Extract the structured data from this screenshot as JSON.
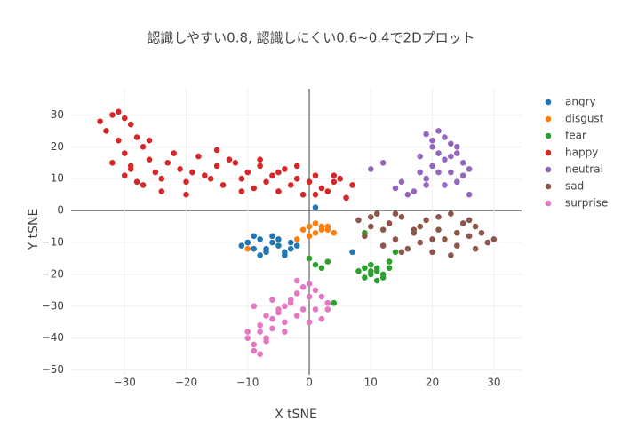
{
  "chart_data": {
    "type": "scatter",
    "title": "認識しやすい0.8, 認識しにくい0.6~0.4で2Dプロット",
    "x_label": "X tSNE",
    "y_label": "Y tSNE",
    "xlim": [
      -38.7,
      34.5
    ],
    "ylim": [
      -51.5,
      38.2
    ],
    "xticks": [
      {
        "value": -30,
        "label": "−30"
      },
      {
        "value": -20,
        "label": "−20"
      },
      {
        "value": -10,
        "label": "−10"
      },
      0,
      10,
      20,
      30
    ],
    "yticks": [
      {
        "value": -50,
        "label": "−50"
      },
      {
        "value": -40,
        "label": "−40"
      },
      {
        "value": -30,
        "label": "−30"
      },
      {
        "value": -20,
        "label": "−20"
      },
      {
        "value": -10,
        "label": "−10"
      },
      0,
      10,
      20,
      30
    ],
    "grid": true,
    "legend": "right",
    "series": [
      {
        "name": "angry",
        "color": "#1f77b4",
        "x": [
          -11,
          -10,
          -9,
          -8,
          -7,
          -6,
          -5,
          -4,
          -3,
          -9,
          -7,
          -5,
          -3,
          -8,
          -6,
          -4,
          -10,
          -2,
          1,
          7
        ],
        "values": [
          -11,
          -10,
          -12,
          -9,
          -13,
          -10,
          -11,
          -14,
          -10,
          -8,
          -12,
          -9,
          -12,
          -14,
          -8,
          -13,
          -10,
          -11,
          1,
          -13
        ]
      },
      {
        "name": "disgust",
        "color": "#ff7f0e",
        "x": [
          -1,
          0,
          1,
          2,
          3,
          4,
          0,
          1,
          2,
          3,
          -2,
          -10
        ],
        "values": [
          -6,
          -5,
          -7,
          -5,
          -6,
          -7,
          -8,
          -4,
          -6,
          -5,
          -9,
          -12
        ]
      },
      {
        "name": "fear",
        "color": "#2ca02c",
        "x": [
          8,
          9,
          10,
          11,
          12,
          13,
          9,
          10,
          11,
          12,
          10,
          11,
          13,
          0,
          1,
          2,
          3,
          4,
          14,
          9
        ],
        "values": [
          -19,
          -18,
          -20,
          -19,
          -21,
          -18,
          -21,
          -17,
          -22,
          -20,
          -19,
          -18,
          -16,
          -15,
          -17,
          -18,
          -16,
          -29,
          -13,
          -7
        ]
      },
      {
        "name": "happy",
        "color": "#d62728",
        "x": [
          -34,
          -32,
          -31,
          -30,
          -29,
          -33,
          -31,
          -28,
          -30,
          -27,
          -32,
          -29,
          -26,
          -30,
          -28,
          -25,
          -27,
          -24,
          -29,
          -26,
          -23,
          -21,
          -20,
          -18,
          -17,
          -15,
          -14,
          -12,
          -11,
          -10,
          -9,
          -8,
          -7,
          -6,
          -5,
          -4,
          -3,
          -2,
          -1,
          0,
          1,
          2,
          3,
          4,
          5,
          6,
          7,
          -22,
          -19,
          -16,
          -13,
          -11,
          -8,
          -5,
          -2,
          1,
          4,
          -24,
          -20,
          -15
        ],
        "values": [
          28,
          30,
          31,
          29,
          27,
          25,
          22,
          23,
          18,
          20,
          15,
          13,
          16,
          11,
          9,
          12,
          8,
          10,
          14,
          22,
          15,
          13,
          9,
          17,
          11,
          14,
          8,
          15,
          10,
          12,
          7,
          14,
          9,
          11,
          6,
          13,
          8,
          10,
          5,
          9,
          11,
          7,
          6,
          9,
          10,
          4,
          8,
          18,
          12,
          10,
          16,
          6,
          16,
          12,
          14,
          5,
          11,
          6,
          5,
          19
        ]
      },
      {
        "name": "neutral",
        "color": "#9467bd",
        "x": [
          19,
          20,
          21,
          22,
          23,
          24,
          21,
          22,
          25,
          20,
          18,
          19,
          23,
          26,
          24,
          22,
          17,
          16,
          15,
          14,
          20,
          23,
          25,
          26,
          12,
          10,
          18,
          21,
          24,
          19
        ],
        "values": [
          24,
          22,
          25,
          23,
          21,
          20,
          18,
          16,
          15,
          14,
          12,
          10,
          12,
          13,
          9,
          8,
          6,
          5,
          9,
          7,
          20,
          17,
          11,
          5,
          15,
          13,
          17,
          12,
          18,
          8
        ]
      },
      {
        "name": "sad",
        "color": "#8c564b",
        "x": [
          8,
          9,
          10,
          11,
          12,
          13,
          14,
          15,
          16,
          17,
          18,
          19,
          20,
          21,
          22,
          23,
          24,
          25,
          26,
          27,
          28,
          29,
          30,
          12,
          15,
          18,
          21,
          24,
          27,
          10,
          14,
          20,
          23,
          26,
          17
        ],
        "values": [
          -3,
          -8,
          -5,
          -1,
          -6,
          -4,
          -9,
          -2,
          -12,
          -7,
          -10,
          -3,
          -13,
          -6,
          -9,
          -1,
          -11,
          -4,
          -8,
          -12,
          -7,
          -10,
          -9,
          -11,
          -13,
          -5,
          -2,
          -7,
          -5,
          -2,
          -1,
          -9,
          -14,
          -3,
          -6
        ]
      },
      {
        "name": "surprise",
        "color": "#e377c2",
        "x": [
          -10,
          -9,
          -8,
          -7,
          -6,
          -5,
          -4,
          -3,
          -2,
          -1,
          0,
          1,
          2,
          3,
          -9,
          -8,
          -7,
          -6,
          -5,
          -4,
          -3,
          -2,
          -1,
          0,
          1,
          2,
          -10,
          -9,
          -8,
          -7,
          -6,
          -4,
          -2,
          0,
          3
        ],
        "values": [
          -38,
          -42,
          -36,
          -40,
          -34,
          -32,
          -30,
          -28,
          -26,
          -24,
          -23,
          -25,
          -27,
          -29,
          -44,
          -38,
          -33,
          -37,
          -31,
          -35,
          -29,
          -33,
          -31,
          -27,
          -31,
          -34,
          -40,
          -30,
          -45,
          -41,
          -28,
          -38,
          -22,
          -35,
          -31
        ]
      }
    ]
  }
}
